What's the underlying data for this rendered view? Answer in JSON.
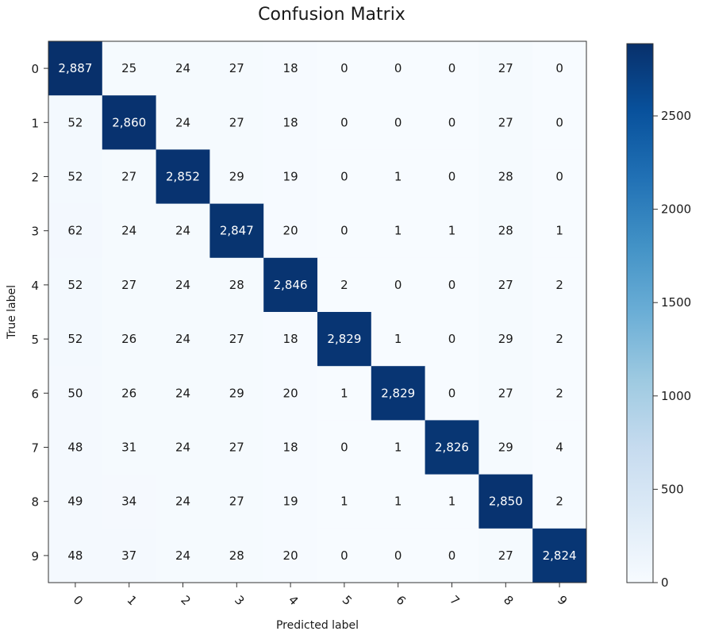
{
  "chart_data": {
    "type": "heatmap",
    "title": "Confusion Matrix",
    "xlabel": "Predicted label",
    "ylabel": "True label",
    "x_categories": [
      "0",
      "1",
      "2",
      "3",
      "4",
      "5",
      "6",
      "7",
      "8",
      "9"
    ],
    "y_categories": [
      "0",
      "1",
      "2",
      "3",
      "4",
      "5",
      "6",
      "7",
      "8",
      "9"
    ],
    "cell_labels": [
      [
        "2,887",
        "25",
        "24",
        "27",
        "18",
        "0",
        "0",
        "0",
        "27",
        "0"
      ],
      [
        "52",
        "2,860",
        "24",
        "27",
        "18",
        "0",
        "0",
        "0",
        "27",
        "0"
      ],
      [
        "52",
        "27",
        "2,852",
        "29",
        "19",
        "0",
        "1",
        "0",
        "28",
        "0"
      ],
      [
        "62",
        "24",
        "24",
        "2,847",
        "20",
        "0",
        "1",
        "1",
        "28",
        "1"
      ],
      [
        "52",
        "27",
        "24",
        "28",
        "2,846",
        "2",
        "0",
        "0",
        "27",
        "2"
      ],
      [
        "52",
        "26",
        "24",
        "27",
        "18",
        "2,829",
        "1",
        "0",
        "29",
        "2"
      ],
      [
        "50",
        "26",
        "24",
        "29",
        "20",
        "1",
        "2,829",
        "0",
        "27",
        "2"
      ],
      [
        "48",
        "31",
        "24",
        "27",
        "18",
        "0",
        "1",
        "2,826",
        "29",
        "4"
      ],
      [
        "49",
        "34",
        "24",
        "27",
        "19",
        "1",
        "1",
        "1",
        "2,850",
        "2"
      ],
      [
        "48",
        "37",
        "24",
        "28",
        "20",
        "0",
        "0",
        "0",
        "27",
        "2,824"
      ]
    ],
    "values": [
      [
        2887,
        25,
        24,
        27,
        18,
        0,
        0,
        0,
        27,
        0
      ],
      [
        52,
        2860,
        24,
        27,
        18,
        0,
        0,
        0,
        27,
        0
      ],
      [
        52,
        27,
        2852,
        29,
        19,
        0,
        1,
        0,
        28,
        0
      ],
      [
        62,
        24,
        24,
        2847,
        20,
        0,
        1,
        1,
        28,
        1
      ],
      [
        52,
        27,
        24,
        28,
        2846,
        2,
        0,
        0,
        27,
        2
      ],
      [
        52,
        26,
        24,
        27,
        18,
        2829,
        1,
        0,
        29,
        2
      ],
      [
        50,
        26,
        24,
        29,
        20,
        1,
        2829,
        0,
        27,
        2
      ],
      [
        48,
        31,
        24,
        27,
        18,
        0,
        1,
        2826,
        29,
        4
      ],
      [
        49,
        34,
        24,
        27,
        19,
        1,
        1,
        1,
        2850,
        2
      ],
      [
        48,
        37,
        24,
        28,
        20,
        0,
        0,
        0,
        27,
        2824
      ]
    ],
    "colorbar": {
      "colormap": "Blues",
      "min": 0,
      "max": 2887,
      "ticks": [
        0,
        500,
        1000,
        1500,
        2000,
        2500
      ]
    },
    "grid": false
  }
}
